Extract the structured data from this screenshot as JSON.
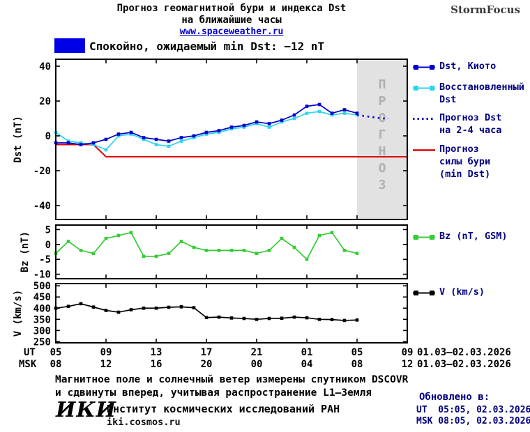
{
  "header": {
    "title_line1": "Прогноз геомагнитной бури и индекса Dst",
    "title_line2": "на ближайшие часы",
    "site_link": "www.spaceweather.ru",
    "brand": "StormFocus"
  },
  "status_banner": {
    "text": "Спокойно, ожидаемый min Dst: −12 nT",
    "box_color": "#0000e6"
  },
  "legend": {
    "dst_kyoto": "Dst, Киото",
    "restored_line1": "Восстановленный",
    "restored_line2": "Dst",
    "forecast_dst_line1": "Прогноз Dst",
    "forecast_dst_line2": "на 2-4 часа",
    "storm_line1": "Прогноз",
    "storm_line2": "силы бури",
    "storm_line3": "(min Dst)",
    "bz": "Bz (nT, GSM)",
    "v": "V (km/s)"
  },
  "axis": {
    "ut_label": "UT",
    "msk_label": "MSK",
    "ut_ticks": [
      "05",
      "09",
      "13",
      "17",
      "21",
      "01",
      "05",
      "09"
    ],
    "msk_ticks": [
      "08",
      "12",
      "16",
      "20",
      "00",
      "04",
      "08",
      "12"
    ],
    "ut_daterange": "01.03—02.03.2026",
    "msk_daterange": "01.03—02.03.2026"
  },
  "footer": {
    "note_line1": "Магнитное поле и солнечный ветер измерены спутником DSCOVR",
    "note_line2": "и сдвинуты вперед, учитывая распространение L1—Земля",
    "updated_label": "Обновлено в:",
    "updated_ut": "UT  05:05, 02.03.2026",
    "updated_msk": "MSK 08:05, 02.03.2026",
    "logo": "ИКИ",
    "institute": "Институт космических исследований РАН",
    "institute_site": "iki.cosmos.ru"
  },
  "chart_data": {
    "type": "line",
    "x_unit": "hour of day (UT), 01.03—02.03.2026",
    "x_range_hours": [
      5,
      33
    ],
    "x_tick_hours": [
      5,
      9,
      13,
      17,
      21,
      25,
      29,
      33
    ],
    "x_hours": [
      5,
      6,
      7,
      8,
      9,
      10,
      11,
      12,
      13,
      14,
      15,
      16,
      17,
      18,
      19,
      20,
      21,
      22,
      23,
      24,
      25,
      26,
      27,
      28,
      29
    ],
    "panels": [
      {
        "name": "dst",
        "ylabel": "Dst (nT)",
        "ylim": [
          -48,
          44
        ],
        "yticks": [
          40,
          20,
          0,
          -20,
          -40
        ],
        "forecast_region": {
          "from_hour": 29,
          "to_hour": 33,
          "label": "ПРОГНОЗ",
          "fill": "#e2e2e2",
          "text_color": "#b0b0b0"
        },
        "series": [
          {
            "name": "Прогноз силы бури (min Dst)",
            "color": "#e00000",
            "style": "solid",
            "marker": "none",
            "x": [
              5,
              8,
              9,
              33
            ],
            "values": [
              -5,
              -5,
              -12,
              -12
            ]
          },
          {
            "name": "Восстановленный Dst",
            "color": "#2bd5ee",
            "style": "solid",
            "marker": "square",
            "values": [
              2,
              -3,
              -4,
              -5,
              -8,
              0,
              1,
              -2,
              -5,
              -6,
              -3,
              -1,
              1,
              2,
              4,
              5,
              7,
              5,
              8,
              10,
              13,
              14,
              12,
              13,
              12
            ]
          },
          {
            "name": "Dst, Киото",
            "color": "#0000cc",
            "style": "solid",
            "marker": "square",
            "values": [
              -4,
              -4,
              -5,
              -4,
              -2,
              1,
              2,
              -1,
              -2,
              -3,
              -1,
              0,
              2,
              3,
              5,
              6,
              8,
              7,
              9,
              12,
              17,
              18,
              13,
              15,
              13
            ]
          },
          {
            "name": "Прогноз Dst на 2-4 часа",
            "color": "#0000cc",
            "style": "dotted",
            "marker": "none",
            "x": [
              29,
              30,
              31,
              31.5
            ],
            "values": [
              12,
              11,
              10,
              10
            ]
          }
        ]
      },
      {
        "name": "bz",
        "ylabel": "Bz (nT)",
        "ylim": [
          -11.5,
          6.5
        ],
        "yticks": [
          5,
          0,
          -5,
          -10
        ],
        "series": [
          {
            "name": "Bz (nT, GSM)",
            "color": "#33cc33",
            "style": "solid",
            "marker": "square",
            "values": [
              -3,
              1,
              -2,
              -3,
              2,
              3,
              4,
              -4,
              -4,
              -3,
              1,
              -1,
              -2,
              -2,
              -2,
              -2,
              -3,
              -2,
              2,
              -1,
              -5,
              3,
              4,
              -2,
              -3
            ]
          }
        ]
      },
      {
        "name": "v",
        "ylabel": "V (km/s)",
        "ylim": [
          245,
          510
        ],
        "yticks": [
          500,
          450,
          400,
          350,
          300,
          250
        ],
        "series": [
          {
            "name": "V (km/s)",
            "color": "#000000",
            "style": "solid",
            "marker": "square",
            "values": [
              400,
              408,
              420,
              405,
              390,
              382,
              393,
              400,
              400,
              404,
              406,
              402,
              358,
              360,
              356,
              354,
              350,
              354,
              355,
              360,
              357,
              350,
              349,
              345,
              347
            ]
          }
        ]
      }
    ]
  }
}
